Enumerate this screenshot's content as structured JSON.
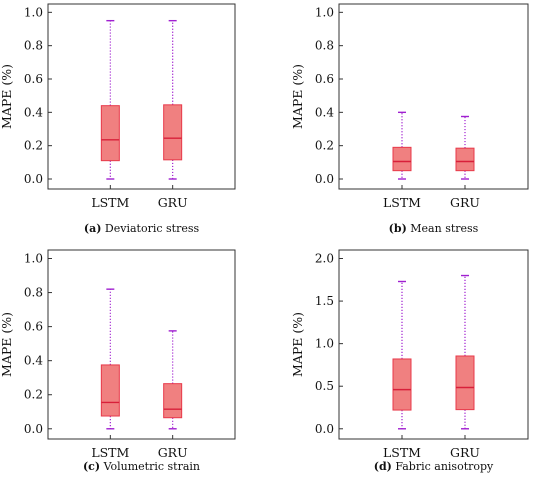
{
  "colors": {
    "box_fill": "#f08080",
    "box_edge": "#e8394a",
    "median": "#d8203a",
    "whisker": "#a020d0",
    "axes": "#333333"
  },
  "chart_data": [
    {
      "type": "box",
      "caption_tag": "(a)",
      "caption": "Deviatoric stress",
      "ylabel": "MAPE (%)",
      "ylim": [
        -0.06,
        1.05
      ],
      "yticks": [
        0.0,
        0.2,
        0.4,
        0.6,
        0.8,
        1.0
      ],
      "ytick_labels": [
        "0.0",
        "0.2",
        "0.4",
        "0.6",
        "0.8",
        "1.0"
      ],
      "categories": [
        "LSTM",
        "GRU"
      ],
      "boxes": [
        {
          "min": 0.0,
          "q1": 0.11,
          "median": 0.235,
          "q3": 0.44,
          "max": 0.95
        },
        {
          "min": 0.0,
          "q1": 0.115,
          "median": 0.245,
          "q3": 0.445,
          "max": 0.95
        }
      ]
    },
    {
      "type": "box",
      "caption_tag": "(b)",
      "caption": "Mean stress",
      "ylabel": "MAPE (%)",
      "ylim": [
        -0.06,
        1.05
      ],
      "yticks": [
        0.0,
        0.2,
        0.4,
        0.6,
        0.8,
        1.0
      ],
      "ytick_labels": [
        "0.0",
        "0.2",
        "0.4",
        "0.6",
        "0.8",
        "1.0"
      ],
      "categories": [
        "LSTM",
        "GRU"
      ],
      "boxes": [
        {
          "min": 0.0,
          "q1": 0.05,
          "median": 0.105,
          "q3": 0.19,
          "max": 0.4
        },
        {
          "min": 0.0,
          "q1": 0.05,
          "median": 0.105,
          "q3": 0.185,
          "max": 0.375
        }
      ]
    },
    {
      "type": "box",
      "caption_tag": "(c)",
      "caption": "Volumetric strain",
      "ylabel": "MAPE (%)",
      "ylim": [
        -0.06,
        1.05
      ],
      "yticks": [
        0.0,
        0.2,
        0.4,
        0.6,
        0.8,
        1.0
      ],
      "ytick_labels": [
        "0.0",
        "0.2",
        "0.4",
        "0.6",
        "0.8",
        "1.0"
      ],
      "categories": [
        "LSTM",
        "GRU"
      ],
      "boxes": [
        {
          "min": 0.0,
          "q1": 0.075,
          "median": 0.155,
          "q3": 0.375,
          "max": 0.82
        },
        {
          "min": 0.0,
          "q1": 0.065,
          "median": 0.115,
          "q3": 0.265,
          "max": 0.575
        }
      ]
    },
    {
      "type": "box",
      "caption_tag": "(d)",
      "caption": "Fabric anisotropy",
      "ylabel": "MAPE (%)",
      "ylim": [
        -0.12,
        2.1
      ],
      "yticks": [
        0.0,
        0.5,
        1.0,
        1.5,
        2.0
      ],
      "ytick_labels": [
        "0.0",
        "0.5",
        "1.0",
        "1.5",
        "2.0"
      ],
      "categories": [
        "LSTM",
        "GRU"
      ],
      "boxes": [
        {
          "min": 0.0,
          "q1": 0.22,
          "median": 0.46,
          "q3": 0.82,
          "max": 1.73
        },
        {
          "min": 0.0,
          "q1": 0.225,
          "median": 0.485,
          "q3": 0.855,
          "max": 1.8
        }
      ]
    }
  ]
}
